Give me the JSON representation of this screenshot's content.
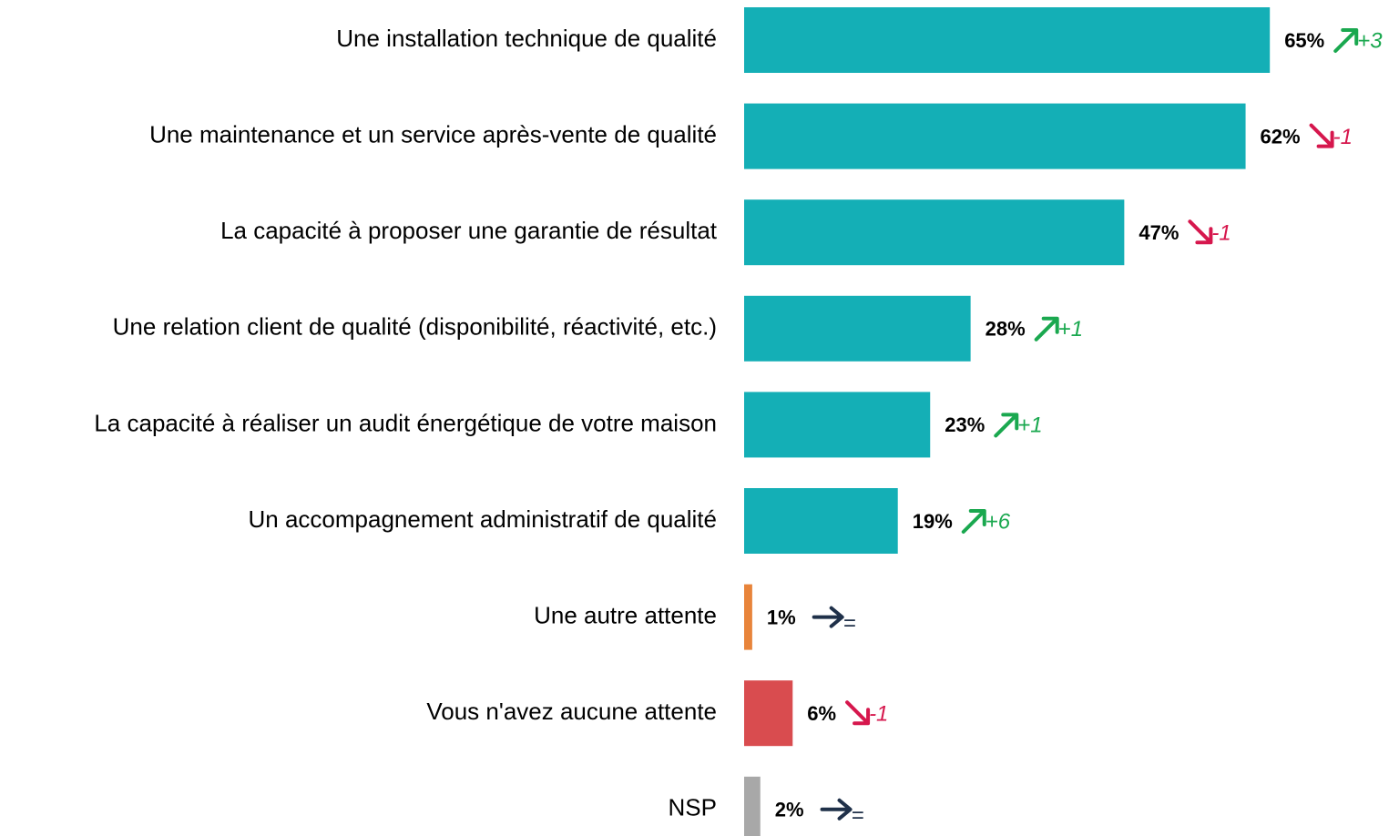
{
  "chart_data": {
    "type": "bar",
    "orientation": "horizontal",
    "categories": [
      "Une installation technique de qualité",
      "Une maintenance et un service après-vente de qualité",
      "La capacité à proposer une garantie de résultat",
      "Une relation client de qualité (disponibilité, réactivité, etc.)",
      "La capacité à réaliser un audit énergétique de votre maison",
      "Un accompagnement administratif de qualité",
      "Une autre attente",
      "Vous n'avez aucune attente",
      "NSP"
    ],
    "values": [
      65,
      62,
      47,
      28,
      23,
      19,
      1,
      6,
      2
    ],
    "value_labels": [
      "65%",
      "62%",
      "47%",
      "28%",
      "23%",
      "19%",
      "1%",
      "6%",
      "2%"
    ],
    "colors": [
      "#14afb6",
      "#14afb6",
      "#14afb6",
      "#14afb6",
      "#14afb6",
      "#14afb6",
      "#e8843a",
      "#d94c4f",
      "#a8a8a8"
    ],
    "changes": [
      "+3",
      "-1",
      "-1",
      "+1",
      "+1",
      "+6",
      "=",
      "-1",
      "="
    ]
  }
}
